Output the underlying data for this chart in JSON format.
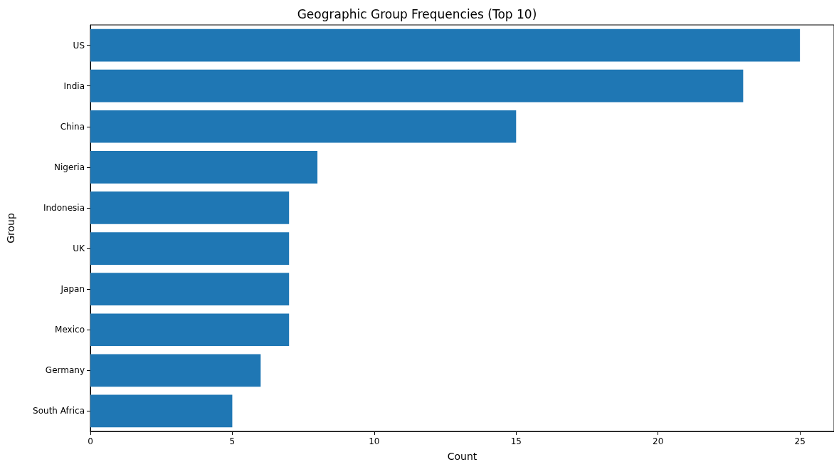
{
  "chart_data": {
    "type": "bar",
    "orientation": "horizontal",
    "title": "Geographic Group Frequencies (Top 10)",
    "xlabel": "Count",
    "ylabel": "Group",
    "categories": [
      "US",
      "India",
      "China",
      "Nigeria",
      "Indonesia",
      "UK",
      "Japan",
      "Mexico",
      "Germany",
      "South Africa"
    ],
    "values": [
      25,
      23,
      15,
      8,
      7,
      7,
      7,
      7,
      6,
      5
    ],
    "color": "#1f77b4",
    "xlim": [
      0,
      26.2
    ],
    "xticks": [
      0,
      5,
      10,
      15,
      20,
      25
    ]
  }
}
